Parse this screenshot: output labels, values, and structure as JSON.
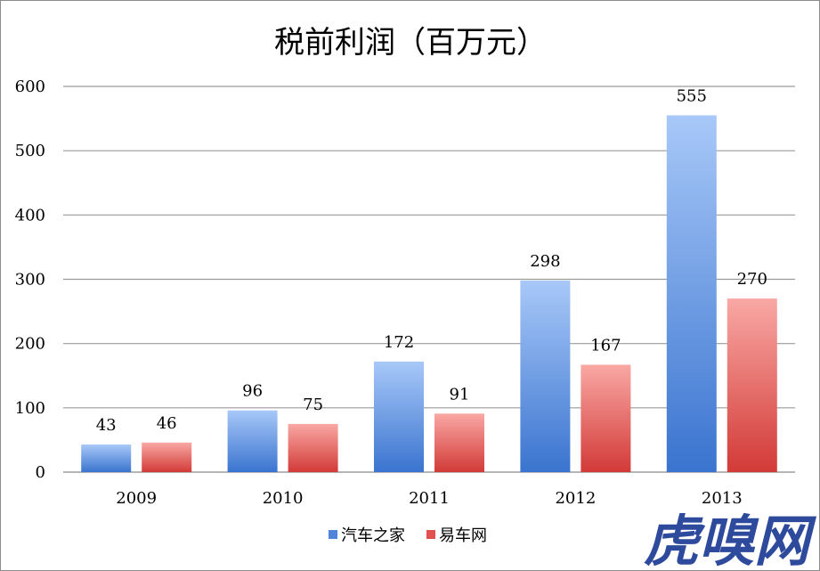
{
  "chart_data": {
    "type": "bar",
    "title": "税前利润（百万元）",
    "categories": [
      "2009",
      "2010",
      "2011",
      "2012",
      "2013"
    ],
    "series": [
      {
        "name": "汽车之家",
        "values": [
          43,
          96,
          172,
          298,
          555
        ],
        "color": "#4f86d9",
        "color_light": "#a8c8f8",
        "color_dark": "#3a74cf"
      },
      {
        "name": "易车网",
        "values": [
          46,
          75,
          91,
          167,
          270
        ],
        "color": "#e0504f",
        "color_light": "#f9a8a4",
        "color_dark": "#d23a37"
      }
    ],
    "ylim": [
      0,
      600
    ],
    "yticks": [
      0,
      100,
      200,
      300,
      400,
      500,
      600
    ],
    "xlabel": "",
    "ylabel": "",
    "grid": true,
    "data_labels": true,
    "legend_position": "bottom"
  },
  "watermark": {
    "text": "虎嗅网",
    "color": "#2d4a9c"
  }
}
